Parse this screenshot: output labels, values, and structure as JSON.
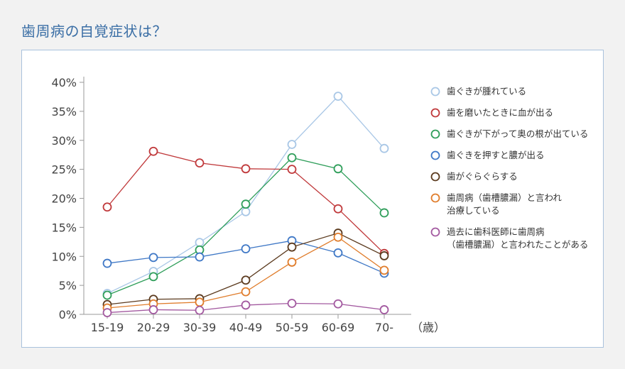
{
  "page": {
    "title": "歯周病の自覚症状は？"
  },
  "chart_data": {
    "type": "line",
    "title": "歯周病の自覚症状は？",
    "categories": [
      "15-19",
      "20-29",
      "30-39",
      "40-49",
      "50-59",
      "60-69",
      "70-"
    ],
    "x_unit_label": "（歳）",
    "y_ticks": [
      "0%",
      "5%",
      "10%",
      "15%",
      "20%",
      "25%",
      "30%",
      "35%",
      "40%"
    ],
    "ylim": [
      0,
      40
    ],
    "y_unit": "%",
    "grid": "none",
    "legend_position": "right",
    "series": [
      {
        "name_lines": [
          "歯ぐきが腫れている"
        ],
        "color": "#a9c7e6",
        "values": [
          3.6,
          7.4,
          12.4,
          17.7,
          29.3,
          37.6,
          28.6
        ]
      },
      {
        "name_lines": [
          "歯を磨いたときに血が出る"
        ],
        "color": "#c0393b",
        "values": [
          18.5,
          28.1,
          26.1,
          25.1,
          25.0,
          18.2,
          10.5
        ]
      },
      {
        "name_lines": [
          "歯ぐきが下がって奥の根が出ている"
        ],
        "color": "#2f9e5a",
        "values": [
          3.3,
          6.5,
          11.1,
          19.0,
          27.0,
          25.1,
          17.5
        ]
      },
      {
        "name_lines": [
          "歯ぐきを押すと膿が出る"
        ],
        "color": "#3f78c6",
        "values": [
          8.8,
          9.8,
          9.9,
          11.3,
          12.7,
          10.6,
          7.1
        ]
      },
      {
        "name_lines": [
          "歯がぐらぐらする"
        ],
        "color": "#5b3a1e",
        "values": [
          1.7,
          2.6,
          2.7,
          5.9,
          11.6,
          14.0,
          10.1
        ]
      },
      {
        "name_lines": [
          "歯周病（歯槽膿漏）と言われ",
          "治療している"
        ],
        "color": "#e07d2c",
        "values": [
          1.1,
          1.8,
          2.1,
          3.9,
          9.0,
          13.3,
          7.6
        ]
      },
      {
        "name_lines": [
          "過去に歯科医師に歯周病",
          "（歯槽膿漏）と言われたことがある"
        ],
        "color": "#a35aa0",
        "values": [
          0.3,
          0.8,
          0.7,
          1.6,
          1.9,
          1.8,
          0.8
        ]
      }
    ]
  }
}
